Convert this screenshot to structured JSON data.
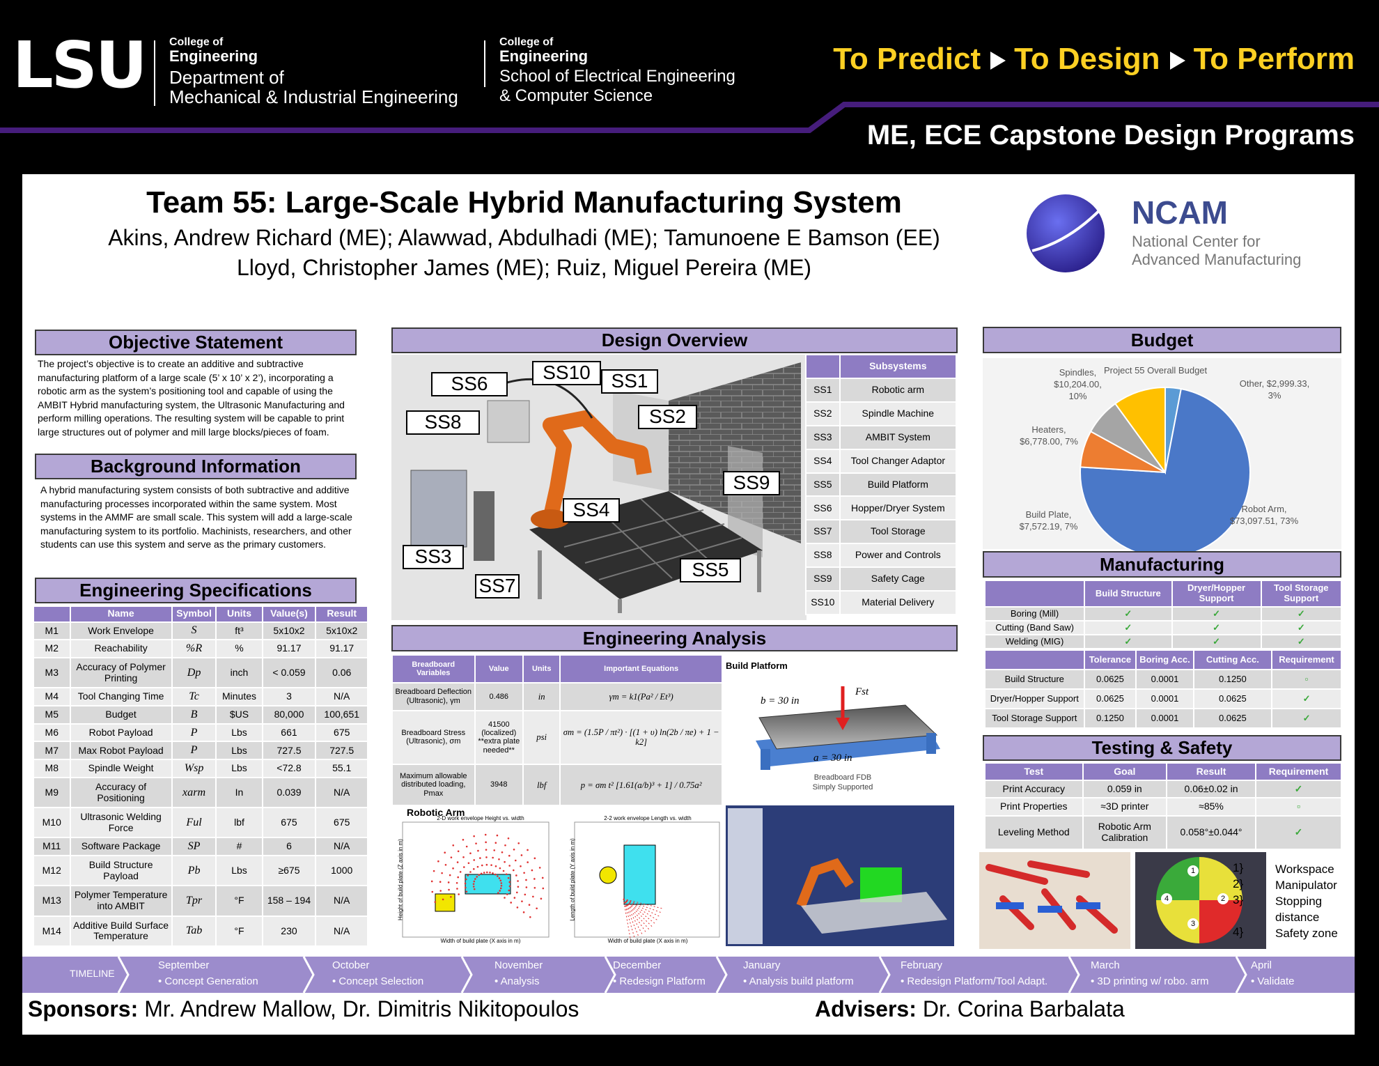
{
  "header": {
    "logo": "LSU",
    "college_label": "College of",
    "college_name": "Engineering",
    "dept_line1": "Department of",
    "dept_line2": "Mechanical & Industrial Engineering",
    "college_label_2": "College of",
    "college_name_2": "Engineering",
    "school_line1": "School of Electrical Engineering",
    "school_line2": "& Computer Science",
    "tagline": [
      "To Predict",
      "To Design",
      "To Perform"
    ],
    "program": "ME, ECE Capstone Design Programs"
  },
  "title": {
    "text": "Team 55: Large-Scale Hybrid Manufacturing System",
    "authors": [
      "Akins, Andrew Richard (ME); Alawwad, Abdulhadi (ME); Tamunoene E Bamson (EE)",
      "Lloyd, Christopher James (ME); Ruiz, Miguel Pereira (ME)"
    ]
  },
  "ncam": {
    "name": "NCAM",
    "line1": "National Center for",
    "line2": "Advanced Manufacturing"
  },
  "objective": {
    "heading": "Objective Statement",
    "text": "The project’s objective is to create an additive and subtractive manufacturing platform of a large scale (5’ x 10’ x 2’), incorporating a robotic arm as the system’s positioning tool and capable of using the AMBIT Hybrid manufacturing system, the Ultrasonic Manufacturing and perform milling operations. The resulting system will be capable to print large structures out of polymer and mill large blocks/pieces of foam."
  },
  "background": {
    "heading": "Background Information",
    "text": "A hybrid manufacturing system consists of both  subtractive and additive manufacturing processes incorporated within the same system. Most systems in the AMMF are small scale. This system will add a large-scale manufacturing system to its portfolio. Machinists, researchers, and other students can use this system and serve as the primary customers."
  },
  "specs": {
    "heading": "Engineering Specifications",
    "columns": [
      "Name",
      "Symbol",
      "Units",
      "Value(s)",
      "Result"
    ],
    "rows": [
      [
        "M1",
        "Work Envelope",
        "S",
        "ft³",
        "5x10x2",
        "5x10x2"
      ],
      [
        "M2",
        "Reachability",
        "%R",
        "%",
        "91.17",
        "91.17"
      ],
      [
        "M3",
        "Accuracy of Polymer Printing",
        "Dp",
        "inch",
        "< 0.059",
        "0.06"
      ],
      [
        "M4",
        "Tool Changing Time",
        "Tc",
        "Minutes",
        "3",
        "N/A"
      ],
      [
        "M5",
        "Budget",
        "B",
        "$US",
        "80,000",
        "100,651"
      ],
      [
        "M6",
        "Robot Payload",
        "P",
        "Lbs",
        "661",
        "675"
      ],
      [
        "M7",
        "Max Robot Payload",
        "P",
        "Lbs",
        "727.5",
        "727.5"
      ],
      [
        "M8",
        "Spindle Weight",
        "Wsp",
        "Lbs",
        "<72.8",
        "55.1"
      ],
      [
        "M9",
        "Accuracy of Positioning",
        "xarm",
        "In",
        "0.039",
        "N/A"
      ],
      [
        "M10",
        "Ultrasonic Welding Force",
        "Ful",
        "lbf",
        "675",
        "675"
      ],
      [
        "M11",
        "Software Package",
        "SP",
        "#",
        "6",
        "N/A"
      ],
      [
        "M12",
        "Build Structure Payload",
        "Pb",
        "Lbs",
        "≥675",
        "1000"
      ],
      [
        "M13",
        "Polymer Temperature into AMBIT",
        "Tpr",
        "°F",
        "158 – 194",
        "N/A"
      ],
      [
        "M14",
        "Additive Build Surface Temperature",
        "Tab",
        "°F",
        "230",
        "N/A"
      ]
    ]
  },
  "design_overview": {
    "heading": "Design Overview",
    "labels": [
      "SS6",
      "SS10",
      "SS1",
      "SS8",
      "SS2",
      "SS9",
      "SS4",
      "SS3",
      "SS5",
      "SS7"
    ],
    "table_header": "Subsystems",
    "subsystems": [
      [
        "SS1",
        "Robotic arm"
      ],
      [
        "SS2",
        "Spindle Machine"
      ],
      [
        "SS3",
        "AMBIT System"
      ],
      [
        "SS4",
        "Tool Changer Adaptor"
      ],
      [
        "SS5",
        "Build Platform"
      ],
      [
        "SS6",
        "Hopper/Dryer System"
      ],
      [
        "SS7",
        "Tool Storage"
      ],
      [
        "SS8",
        "Power and Controls"
      ],
      [
        "SS9",
        "Safety Cage"
      ],
      [
        "SS10",
        "Material Delivery"
      ]
    ]
  },
  "analysis": {
    "heading": "Engineering Analysis",
    "columns": [
      "Breadboard Variables",
      "Value",
      "Units",
      "Important Equations"
    ],
    "rows": [
      [
        "Breadboard Deflection (Ultrasonic), γm",
        "0.486",
        "in",
        "γm = k1(Pa² / Et³)"
      ],
      [
        "Breadboard Stress (Ultrasonic), σm",
        "41500 (localized) **extra plate needed**",
        "psi",
        "σm = (1.5P / πt²) · [(1 + υ) ln(2b / πe) + 1 − k2]"
      ],
      [
        "Maximum allowable distributed loading, Pmax",
        "3948",
        "lbf",
        "p = σm t² [1.61(a/b)³ + 1] / 0.75a²"
      ]
    ],
    "build_platform": {
      "title": "Build Platform",
      "b_label": "b = 30 in",
      "force": "Fst",
      "a_label": "a = 30 in",
      "caption1": "Breadboard FDB",
      "caption2": "Simply Supported"
    },
    "robotic_arm": {
      "title": "Robotic Arm",
      "plot1_title": "2-D work envelope Height vs. width",
      "plot1_xlabel": "Width of build plate (X axis in m)",
      "plot1_ylabel": "Height of build plate (Z axis in m)",
      "plot2_title": "2-2 work envelope Length vs. width",
      "plot2_xlabel": "Width of build plate (X axis in m)",
      "plot2_ylabel": "Length of build plate (Y axis in m)"
    }
  },
  "budget": {
    "heading": "Budget",
    "chart_title": "Project 55 Overall Budget",
    "slices": [
      {
        "label": "Other, $2,999.33, 3%",
        "value": 3,
        "color": "#5b9bd5"
      },
      {
        "label": "Robot Arm, $73,097.51, 73%",
        "value": 73,
        "color": "#4a78c8"
      },
      {
        "label": "Build Plate, $7,572.19, 7%",
        "value": 7,
        "color": "#ed7d31"
      },
      {
        "label": "Heaters, $6,778.00, 7%",
        "value": 7,
        "color": "#a5a5a5"
      },
      {
        "label": "Spindles, $10,204.00, 10%",
        "value": 10,
        "color": "#ffc000"
      }
    ]
  },
  "manufacturing": {
    "heading": "Manufacturing",
    "columns": [
      "Build Structure",
      "Dryer/Hopper Support",
      "Tool Storage Support"
    ],
    "rows": [
      [
        "Boring (Mill)",
        "✓",
        "✓",
        "✓"
      ],
      [
        "Cutting (Band Saw)",
        "✓",
        "✓",
        "✓"
      ],
      [
        "Welding (MIG)",
        "✓",
        "✓",
        "✓"
      ]
    ],
    "columns2": [
      "Tolerance",
      "Boring Acc.",
      "Cutting Acc.",
      "Requirement"
    ],
    "rows2": [
      [
        "Build Structure",
        "0.0625",
        "0.0001",
        "0.1250",
        "▫"
      ],
      [
        "Dryer/Hopper Support",
        "0.0625",
        "0.0001",
        "0.0625",
        "✓"
      ],
      [
        "Tool Storage Support",
        "0.1250",
        "0.0001",
        "0.0625",
        "✓"
      ]
    ]
  },
  "testing": {
    "heading": "Testing & Safety",
    "columns": [
      "Test",
      "Goal",
      "Result",
      "Requirement"
    ],
    "rows": [
      [
        "Print Accuracy",
        "0.059 in",
        "0.06±0.02 in",
        "✓"
      ],
      [
        "Print Properties",
        "≈3D printer",
        "≈85%",
        "▫"
      ],
      [
        "Leveling Method",
        "Robotic Arm Calibration",
        "0.058°±0.044°",
        "✓"
      ]
    ]
  },
  "safety": {
    "diagram_labels": [
      "1",
      "2",
      "3",
      "4"
    ],
    "items": [
      [
        "1}",
        "Workspace"
      ],
      [
        "2}",
        "Manipulator"
      ],
      [
        "3}",
        "Stopping distance"
      ],
      [
        "4}",
        "Safety zone"
      ]
    ]
  },
  "timeline": {
    "label": "TIMELINE",
    "months": [
      [
        "September",
        "• Concept Generation"
      ],
      [
        "October",
        "• Concept Selection"
      ],
      [
        "November",
        "• Analysis"
      ],
      [
        "December",
        "• Redesign Platform"
      ],
      [
        "January",
        "• Analysis build platform"
      ],
      [
        "February",
        "• Redesign Platform/Tool Adapt."
      ],
      [
        "March",
        "• 3D printing w/ robo. arm"
      ],
      [
        "April",
        "• Validate"
      ]
    ]
  },
  "footer": {
    "sponsors_label": "Sponsors:",
    "sponsors": "Mr. Andrew Mallow, Dr. Dimitris Nikitopoulos",
    "advisers_label": "Advisers:",
    "advisers": "Dr. Corina Barbalata"
  }
}
